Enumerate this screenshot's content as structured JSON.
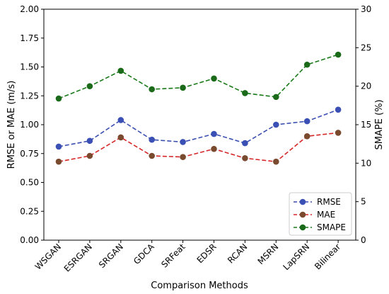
{
  "chart_data": {
    "type": "line",
    "categories": [
      "WSGAN",
      "ESRGAN",
      "SRGAN",
      "GDCA",
      "SRFeat",
      "EDSR",
      "RCAN",
      "MSRN",
      "LapSRN",
      "Bilinear"
    ],
    "xlabel": "Comparison Methods",
    "ylabel": "RMSE or MAE (m/s)",
    "y2label": "SMAPE (%)",
    "ylim": [
      0,
      2.0
    ],
    "y2lim": [
      0,
      30
    ],
    "yticks": [
      "0.00",
      "0.25",
      "0.50",
      "0.75",
      "1.00",
      "1.25",
      "1.50",
      "1.75",
      "2.00"
    ],
    "y2ticks": [
      "0",
      "5",
      "10",
      "15",
      "20",
      "25",
      "30"
    ],
    "grid": false,
    "legend_position": "bottom-right",
    "series": [
      {
        "name": "RMSE",
        "axis": "left",
        "color": "#3a4fb0",
        "marker_color": "#3b50b5",
        "values": [
          0.81,
          0.86,
          1.04,
          0.87,
          0.85,
          0.92,
          0.84,
          1.0,
          1.03,
          1.13
        ]
      },
      {
        "name": "MAE",
        "axis": "left",
        "color": "#d62728",
        "marker_color": "#7a4a2f",
        "values": [
          0.68,
          0.73,
          0.89,
          0.73,
          0.72,
          0.79,
          0.71,
          0.68,
          0.9,
          0.93
        ]
      },
      {
        "name": "SMAPE",
        "axis": "right",
        "color": "#1a7a1a",
        "marker_color": "#1a6a1a",
        "values": [
          18.4,
          20.0,
          22.0,
          19.6,
          19.8,
          21.0,
          19.1,
          18.6,
          22.8,
          24.1
        ]
      }
    ]
  }
}
